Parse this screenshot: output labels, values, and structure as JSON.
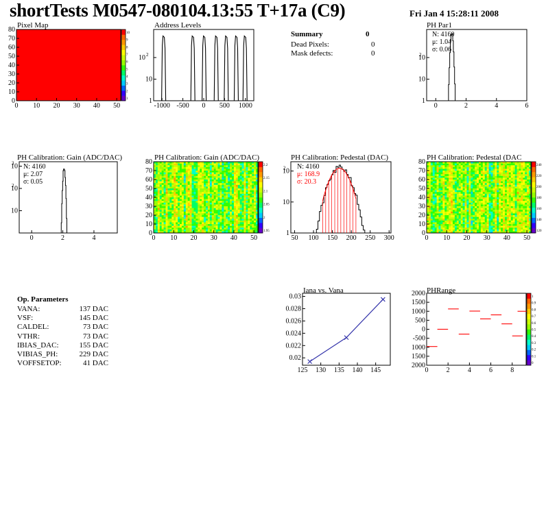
{
  "header": {
    "title": "shortTests M0547-080104.13:55 T+17a (C9)",
    "date": "Fri Jan  4 15:28:11 2008"
  },
  "summary": {
    "title": "Summary",
    "title_value": "0",
    "rows": [
      {
        "label": "Dead Pixels:",
        "value": "0"
      },
      {
        "label": "Mask defects:",
        "value": "0"
      }
    ]
  },
  "op_params": {
    "title": "Op. Parameters",
    "rows": [
      {
        "label": "VANA:",
        "value": "137 DAC"
      },
      {
        "label": "VSF:",
        "value": "145 DAC"
      },
      {
        "label": "CALDEL:",
        "value": "73 DAC"
      },
      {
        "label": "VTHR:",
        "value": "73 DAC"
      },
      {
        "label": "IBIAS_DAC:",
        "value": "155 DAC"
      },
      {
        "label": "VIBIAS_PH:",
        "value": "229 DAC"
      },
      {
        "label": "VOFFSETOP:",
        "value": "41 DAC"
      }
    ]
  },
  "colors": {
    "red": "#ff0000",
    "line_blue": "#3333aa",
    "hist": "#000000",
    "palette": [
      "#6600cc",
      "#3300ff",
      "#0066ff",
      "#00ccff",
      "#00ffcc",
      "#00ff66",
      "#33ff00",
      "#99ff00",
      "#ccff00",
      "#ffff00",
      "#ffcc00",
      "#ff9900",
      "#ff6600",
      "#ff0000"
    ]
  },
  "chart_data": [
    {
      "id": "pixel_map",
      "type": "heatmap",
      "title": "Pixel Map",
      "xlim": [
        0,
        52
      ],
      "ylim": [
        0,
        80
      ],
      "xticks": [
        "0",
        "10",
        "20",
        "30",
        "40",
        "50"
      ],
      "yticks": [
        "0",
        "10",
        "20",
        "30",
        "40",
        "50",
        "60",
        "70",
        "80"
      ],
      "zticks": [
        "10",
        "9",
        "8",
        "7",
        "6",
        "5",
        "4",
        "3",
        "2",
        "1"
      ],
      "fill_value": 10
    },
    {
      "id": "address_levels",
      "type": "bar",
      "title": "Address Levels",
      "xlim": [
        -1200,
        1200
      ],
      "yscale": "log",
      "xticks": [
        "-1000",
        "-500",
        "0",
        "500",
        "1000"
      ],
      "yticks": [
        "10^2",
        "10",
        "1"
      ],
      "peaks": [
        {
          "x": -960,
          "y": 1000
        },
        {
          "x": -260,
          "y": 1000
        },
        {
          "x": 10,
          "y": 1000
        },
        {
          "x": 300,
          "y": 1000
        },
        {
          "x": 540,
          "y": 1000
        },
        {
          "x": 780,
          "y": 1000
        },
        {
          "x": 990,
          "y": 1000
        }
      ]
    },
    {
      "id": "ph_par1",
      "type": "bar",
      "title": "PH Par1",
      "yscale": "log",
      "xlim": [
        -0.6,
        6
      ],
      "xticks": [
        "0",
        "2",
        "4",
        "6"
      ],
      "yticks": [
        "10^2",
        "10",
        "1"
      ],
      "stats": [
        "N: 4160",
        "μ: 1.04",
        "σ: 0.06"
      ],
      "mean": 1.04,
      "sigma": 0.06,
      "peak": 1400
    },
    {
      "id": "gain_hist",
      "type": "bar",
      "title": "PH Calibration: Gain (ADC/DAC)",
      "yscale": "log",
      "xlim": [
        -0.8,
        5.5
      ],
      "xticks": [
        "0",
        "2",
        "4"
      ],
      "yticks": [
        "10^3",
        "10^2",
        "10"
      ],
      "stats": [
        "N: 4160",
        "μ: 2.07",
        "σ: 0.05"
      ],
      "mean": 2.07,
      "sigma": 0.05,
      "peak": 900
    },
    {
      "id": "gain_map",
      "type": "heatmap",
      "title": "PH Calibration: Gain (ADC/DAC)",
      "xlim": [
        0,
        52
      ],
      "ylim": [
        0,
        80
      ],
      "xticks": [
        "0",
        "10",
        "20",
        "30",
        "40",
        "50"
      ],
      "yticks": [
        "0",
        "10",
        "20",
        "30",
        "40",
        "50",
        "60",
        "70",
        "80"
      ],
      "zticks": [
        "2.2",
        "2.15",
        "2.1",
        "2.05",
        "2",
        "1.95"
      ]
    },
    {
      "id": "pedestal_hist",
      "type": "bar",
      "title": "PH Calibration: Pedestal (DAC)",
      "yscale": "log",
      "xlim": [
        40,
        305
      ],
      "xticks": [
        "50",
        "100",
        "150",
        "200",
        "250",
        "300"
      ],
      "yticks": [
        "10^2",
        "10",
        "1"
      ],
      "stats": [
        "N: 4160",
        "μ: 168.9",
        "σ: 20.3"
      ],
      "mean": 168.9,
      "sigma": 20.3,
      "peak": 130
    },
    {
      "id": "pedestal_map",
      "type": "heatmap",
      "title": "PH Calibration: Pedestal (DAC",
      "xlim": [
        0,
        52
      ],
      "ylim": [
        0,
        80
      ],
      "xticks": [
        "0",
        "10",
        "20",
        "30",
        "40",
        "50"
      ],
      "yticks": [
        "0",
        "10",
        "20",
        "30",
        "40",
        "50",
        "60",
        "70",
        "80"
      ],
      "zticks": [
        "240",
        "220",
        "200",
        "180",
        "160",
        "140",
        "120"
      ]
    },
    {
      "id": "iana_vana",
      "type": "line",
      "title": "Iana vs. Vana",
      "xlim": [
        125,
        149
      ],
      "ylim": [
        0.0188,
        0.0305
      ],
      "xticks": [
        "125",
        "130",
        "135",
        "140",
        "145"
      ],
      "yticks": [
        "0.02",
        "0.022",
        "0.024",
        "0.026",
        "0.028",
        "0.03"
      ],
      "x": [
        127,
        137,
        147
      ],
      "y": [
        0.0194,
        0.0233,
        0.0295
      ]
    },
    {
      "id": "ph_range",
      "type": "scatter",
      "title": "PHRange",
      "xlim": [
        0,
        9.3
      ],
      "ylim": [
        -2000,
        2000
      ],
      "xticks": [
        "0",
        "2",
        "4",
        "6",
        "8"
      ],
      "yticks": [
        "2000",
        "1500",
        "1000",
        "500",
        "0",
        "-500",
        "1000",
        "1500",
        "2000"
      ],
      "zticks": [
        "1",
        "0.9",
        "0.8",
        "0.7",
        "0.6",
        "0.5",
        "0.4",
        "0.3",
        "0.2",
        "0.1",
        "0"
      ],
      "segments": [
        {
          "x": 0,
          "y": -960
        },
        {
          "x": 1,
          "y": 0
        },
        {
          "x": 2,
          "y": 1130
        },
        {
          "x": 3,
          "y": -270
        },
        {
          "x": 4,
          "y": 1010
        },
        {
          "x": 5,
          "y": 580
        },
        {
          "x": 6,
          "y": 800
        },
        {
          "x": 7,
          "y": 300
        },
        {
          "x": 8,
          "y": -370
        },
        {
          "x": 8.5,
          "y": 1000
        }
      ]
    }
  ]
}
